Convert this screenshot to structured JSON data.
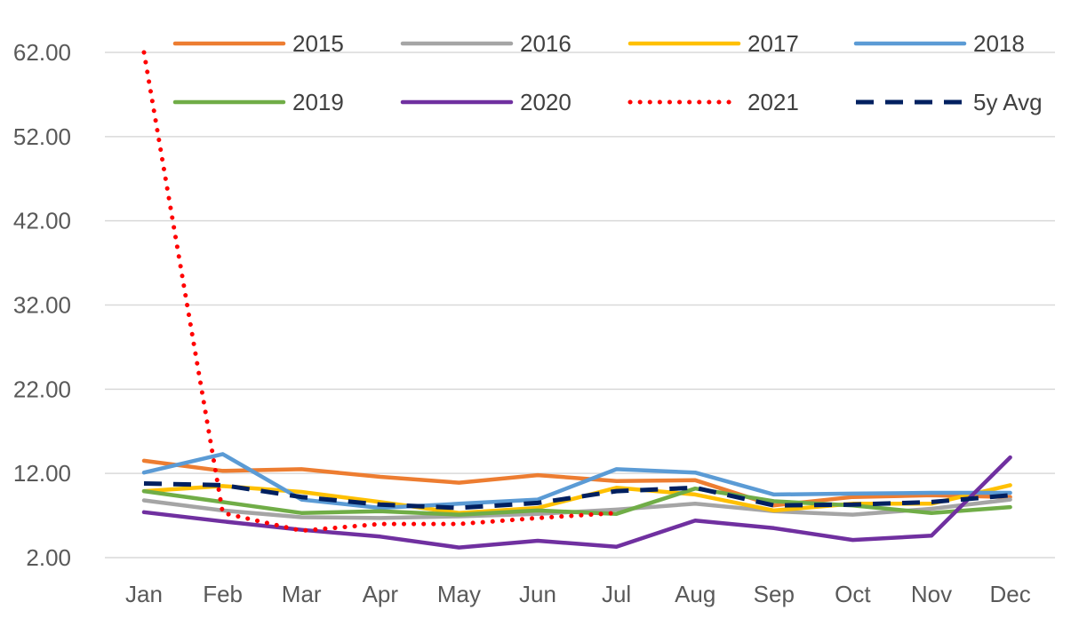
{
  "chart_data": {
    "type": "line",
    "title": "",
    "xlabel": "",
    "ylabel": "",
    "categories": [
      "Jan",
      "Feb",
      "Mar",
      "Apr",
      "May",
      "Jun",
      "Jul",
      "Aug",
      "Sep",
      "Oct",
      "Nov",
      "Dec"
    ],
    "ylim": [
      2,
      62
    ],
    "yticks": [
      "2.00",
      "12.00",
      "22.00",
      "32.00",
      "42.00",
      "52.00",
      "62.00"
    ],
    "ytick_values": [
      2,
      12,
      22,
      32,
      42,
      52,
      62
    ],
    "grid": true,
    "legend_position": "top",
    "series": [
      {
        "name": "2015",
        "color": "#ED7D31",
        "style": "solid",
        "values": [
          13.5,
          12.3,
          12.5,
          11.6,
          10.9,
          11.8,
          11.1,
          11.2,
          8.2,
          9.2,
          9.4,
          9.2
        ]
      },
      {
        "name": "2016",
        "color": "#A5A5A5",
        "style": "solid",
        "values": [
          8.8,
          7.6,
          6.8,
          6.7,
          6.9,
          7.2,
          7.7,
          8.4,
          7.5,
          7.1,
          7.8,
          8.9
        ]
      },
      {
        "name": "2017",
        "color": "#FFC000",
        "style": "solid",
        "values": [
          9.9,
          10.5,
          9.8,
          8.6,
          7.3,
          7.9,
          10.3,
          9.5,
          7.6,
          8.4,
          8.4,
          10.6
        ]
      },
      {
        "name": "2018",
        "color": "#5B9BD5",
        "style": "solid",
        "values": [
          12.1,
          14.3,
          8.9,
          7.9,
          8.4,
          8.9,
          12.5,
          12.1,
          9.5,
          9.6,
          9.7,
          9.7
        ]
      },
      {
        "name": "2019",
        "color": "#70AD47",
        "style": "solid",
        "values": [
          9.9,
          8.6,
          7.3,
          7.5,
          7.1,
          7.6,
          7.2,
          10.2,
          8.7,
          8.2,
          7.3,
          8.0
        ]
      },
      {
        "name": "2020",
        "color": "#7030A0",
        "style": "solid",
        "values": [
          7.4,
          6.3,
          5.3,
          4.5,
          3.2,
          4.0,
          3.3,
          6.4,
          5.5,
          4.1,
          4.6,
          13.9
        ]
      },
      {
        "name": "2021",
        "color": "#FF0000",
        "style": "dotted",
        "values": [
          62.0,
          7.3,
          5.2,
          6.0,
          6.0,
          6.7,
          7.3,
          null,
          null,
          null,
          null,
          null
        ]
      },
      {
        "name": "5y Avg",
        "color": "#002060",
        "style": "dashed",
        "values": [
          10.8,
          10.6,
          9.2,
          8.3,
          7.9,
          8.5,
          9.9,
          10.3,
          8.2,
          8.3,
          8.6,
          9.4
        ]
      }
    ]
  }
}
